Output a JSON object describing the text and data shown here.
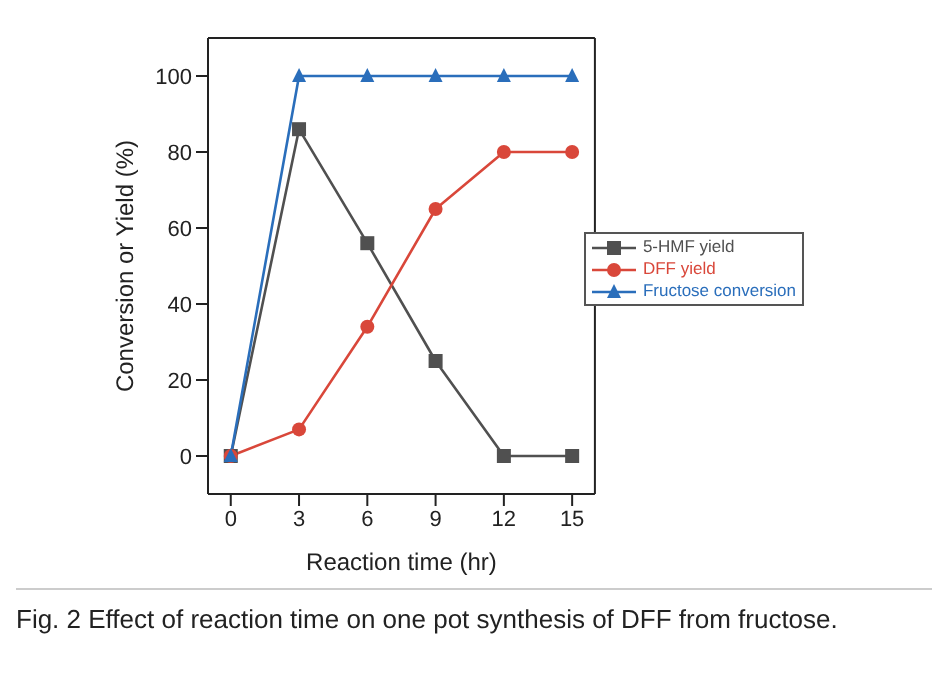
{
  "chart_data": {
    "type": "line",
    "xlabel": "Reaction time (hr)",
    "ylabel": "Conversion or Yield (%)",
    "x": [
      0,
      3,
      6,
      9,
      12,
      15
    ],
    "series": [
      {
        "name": "5-HMF yield",
        "color": "#505050",
        "marker": "square",
        "values": [
          0,
          86,
          56,
          25,
          0,
          0
        ]
      },
      {
        "name": "DFF yield",
        "color": "#d9473a",
        "marker": "circle",
        "values": [
          0,
          7,
          34,
          65,
          80,
          80
        ]
      },
      {
        "name": "Fructose conversion",
        "color": "#2a6ebb",
        "marker": "triangle",
        "values": [
          0,
          100,
          100,
          100,
          100,
          100
        ]
      }
    ],
    "xlim": [
      -1,
      16
    ],
    "xticks": [
      0,
      3,
      6,
      9,
      12,
      15
    ],
    "ylim": [
      -10,
      110
    ],
    "yticks": [
      0,
      20,
      40,
      60,
      80,
      100
    ],
    "grid": false,
    "legend": "right",
    "line_style": "solid",
    "annotations": [
      "Fig. 2  Effect of reaction time on one pot synthesis of DFF from fructose."
    ]
  }
}
